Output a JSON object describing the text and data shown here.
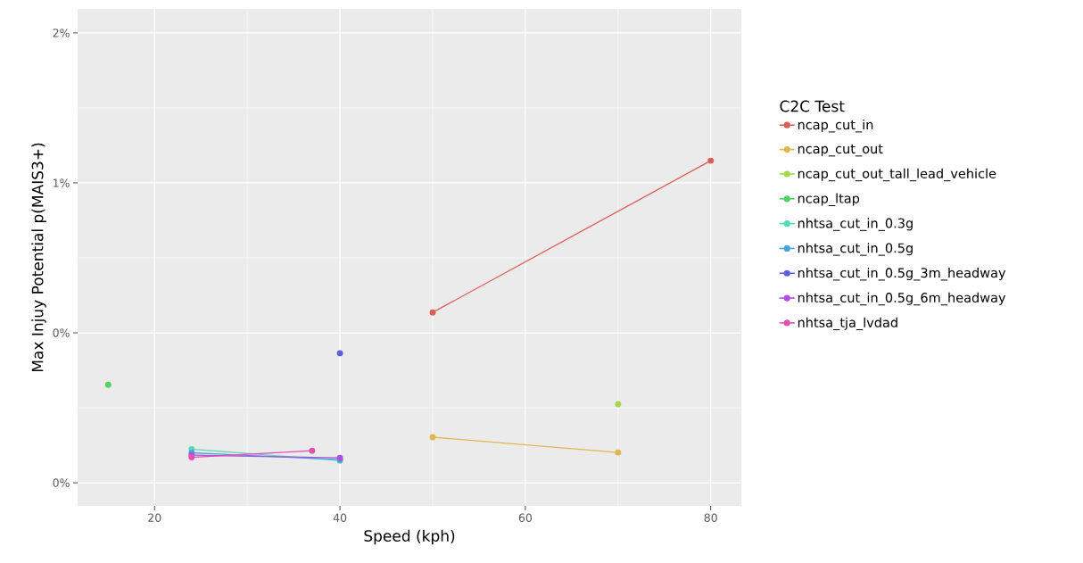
{
  "chart_data": {
    "type": "line",
    "xlabel": "Speed (kph)",
    "ylabel": "Max Injuy Potential p(MAIS3+)",
    "legend_title": "C2C Test",
    "xlim": [
      11.7,
      83.3
    ],
    "ylim": [
      -0.077,
      1.58
    ],
    "xticks": [
      20,
      40,
      60,
      80
    ],
    "yticks": [
      {
        "value": 0,
        "label": "0%"
      },
      {
        "value": 0.5,
        "label": "0%"
      },
      {
        "value": 1,
        "label": "1%"
      },
      {
        "value": 1.5,
        "label": "2%"
      }
    ],
    "grid": true,
    "legend": "right",
    "marker": "circle",
    "line_style": "solid",
    "series": [
      {
        "name": "ncap_cut_in",
        "color": "#db5e56",
        "x": [
          50,
          80
        ],
        "values": [
          0.568,
          1.074
        ]
      },
      {
        "name": "ncap_cut_out",
        "color": "#e0b650",
        "x": [
          50,
          70
        ],
        "values": [
          0.152,
          0.101
        ]
      },
      {
        "name": "ncap_cut_out_tall_lead_vehicle",
        "color": "#a3d84c",
        "x": [
          70
        ],
        "values": [
          0.262
        ]
      },
      {
        "name": "ncap_ltap",
        "color": "#52d160",
        "x": [
          15
        ],
        "values": [
          0.327
        ]
      },
      {
        "name": "nhtsa_cut_in_0.3g",
        "color": "#52dbb4",
        "x": [
          24,
          40
        ],
        "values": [
          0.112,
          0.074
        ]
      },
      {
        "name": "nhtsa_cut_in_0.5g",
        "color": "#4ba3dd",
        "x": [
          24,
          40
        ],
        "values": [
          0.1,
          0.077
        ]
      },
      {
        "name": "nhtsa_cut_in_0.5g_3m_headway",
        "color": "#5a5fe0",
        "x": [
          40
        ],
        "values": [
          0.432
        ]
      },
      {
        "name": "nhtsa_cut_in_0.5g_6m_headway",
        "color": "#b04fe0",
        "x": [
          24,
          40
        ],
        "values": [
          0.092,
          0.083
        ]
      },
      {
        "name": "nhtsa_tja_lvdad",
        "color": "#e052b0",
        "x": [
          24,
          37
        ],
        "values": [
          0.085,
          0.107
        ]
      }
    ]
  }
}
